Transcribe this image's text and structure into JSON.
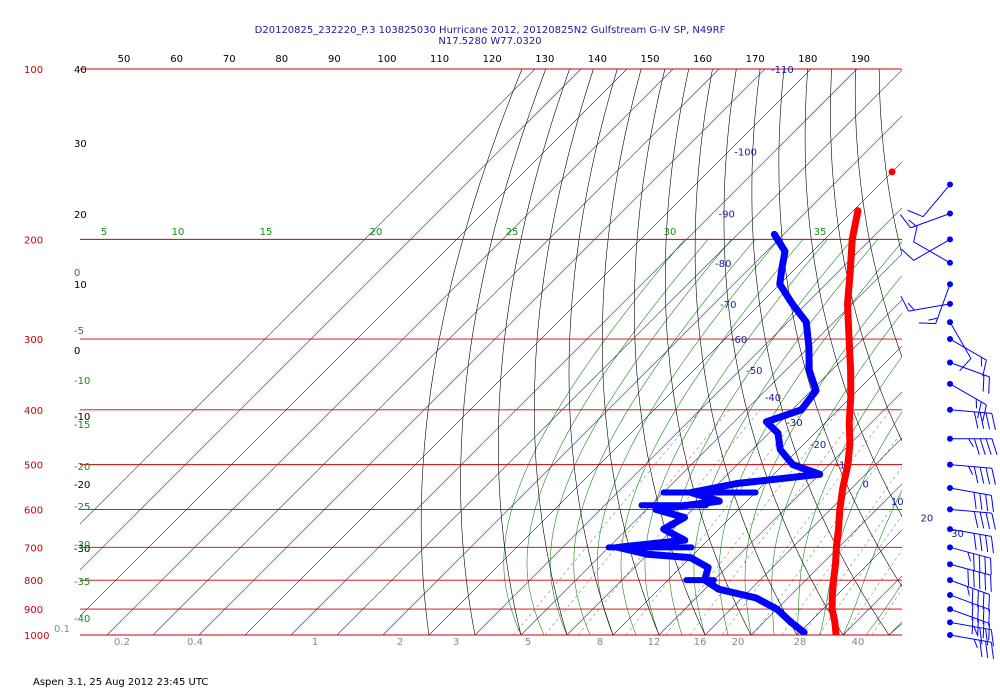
{
  "chart_data": {
    "type": "skew-t",
    "title_lines": [
      "D20120825_232220_P.3 103825030 Hurricane 2012, 20120825N2 Gulfstream G-IV SP, N49RF",
      "N17.5280 W77.0320"
    ],
    "footer": "Aspen 3.1, 25 Aug 2012  23:45 UTC",
    "pressure_levels": [
      100,
      200,
      300,
      400,
      500,
      600,
      700,
      800,
      900,
      1000
    ],
    "theta_labels": [
      50,
      60,
      70,
      80,
      90,
      100,
      110,
      120,
      130,
      140,
      150,
      160,
      170,
      180,
      190
    ],
    "isotherm_labels_left": [
      "-110",
      "-100",
      "-90",
      "-80",
      "-70",
      "-60",
      "-50",
      "-40",
      "-30",
      "-20",
      "-10",
      "0",
      "10",
      "20",
      "30"
    ],
    "left_axis_labels": [
      "40",
      "30",
      "20",
      "10",
      "0",
      "-10",
      "-20",
      "-30"
    ],
    "moist_adiabat_labels_left": [
      "0",
      "-5",
      "-10",
      "-15",
      "-20",
      "-25",
      "-30",
      "-35",
      "-40"
    ],
    "moist_adiabat_labels_top": [
      "5",
      "10",
      "15",
      "20",
      "25",
      "30",
      "35"
    ],
    "mixing_ratio_labels": [
      "0.1",
      "0.2",
      "0.4",
      "1",
      "2",
      "3",
      "5",
      "8",
      "12",
      "16",
      "20",
      "28",
      "40"
    ],
    "temperature_profile": [
      {
        "p": 178,
        "t": -59
      },
      {
        "p": 200,
        "t": -54
      },
      {
        "p": 230,
        "t": -47
      },
      {
        "p": 260,
        "t": -41
      },
      {
        "p": 300,
        "t": -33
      },
      {
        "p": 340,
        "t": -26
      },
      {
        "p": 380,
        "t": -20
      },
      {
        "p": 420,
        "t": -15
      },
      {
        "p": 460,
        "t": -10
      },
      {
        "p": 500,
        "t": -6
      },
      {
        "p": 550,
        "t": -2
      },
      {
        "p": 600,
        "t": 2
      },
      {
        "p": 650,
        "t": 6
      },
      {
        "p": 700,
        "t": 9.5
      },
      {
        "p": 750,
        "t": 13
      },
      {
        "p": 800,
        "t": 16
      },
      {
        "p": 850,
        "t": 19
      },
      {
        "p": 900,
        "t": 22
      },
      {
        "p": 950,
        "t": 25.5
      },
      {
        "p": 1000,
        "t": 28.5
      }
    ],
    "temperature_outlier": {
      "p": 152,
      "t": -60
    },
    "dewpoint_profile": [
      {
        "p": 196,
        "t": -72
      },
      {
        "p": 210,
        "t": -66
      },
      {
        "p": 225,
        "t": -63
      },
      {
        "p": 240,
        "t": -60
      },
      {
        "p": 260,
        "t": -53
      },
      {
        "p": 280,
        "t": -46
      },
      {
        "p": 310,
        "t": -40
      },
      {
        "p": 340,
        "t": -35
      },
      {
        "p": 370,
        "t": -29
      },
      {
        "p": 400,
        "t": -28
      },
      {
        "p": 420,
        "t": -33
      },
      {
        "p": 440,
        "t": -28
      },
      {
        "p": 470,
        "t": -24
      },
      {
        "p": 500,
        "t": -18
      },
      {
        "p": 520,
        "t": -10
      },
      {
        "p": 540,
        "t": -26
      },
      {
        "p": 560,
        "t": -34
      },
      {
        "p": 580,
        "t": -26
      },
      {
        "p": 600,
        "t": -38
      },
      {
        "p": 620,
        "t": -30
      },
      {
        "p": 650,
        "t": -32
      },
      {
        "p": 680,
        "t": -25
      },
      {
        "p": 700,
        "t": -38
      },
      {
        "p": 720,
        "t": -30
      },
      {
        "p": 730,
        "t": -20
      },
      {
        "p": 760,
        "t": -14
      },
      {
        "p": 800,
        "t": -12
      },
      {
        "p": 830,
        "t": -7
      },
      {
        "p": 860,
        "t": 3
      },
      {
        "p": 900,
        "t": 10
      },
      {
        "p": 950,
        "t": 16
      },
      {
        "p": 990,
        "t": 21
      }
    ],
    "dewpoint_excursions": [
      {
        "p": 560,
        "t_min": -40,
        "t_max": -20
      },
      {
        "p": 590,
        "t_min": -42,
        "t_max": -28
      },
      {
        "p": 700,
        "t_min": -40,
        "t_max": -22
      },
      {
        "p": 800,
        "t_min": -16,
        "t_max": -10
      }
    ],
    "wind_barbs": [
      {
        "p": 160,
        "dir": 220,
        "kt": 10
      },
      {
        "p": 180,
        "dir": 250,
        "kt": 15
      },
      {
        "p": 200,
        "dir": 240,
        "kt": 10
      },
      {
        "p": 220,
        "dir": 300,
        "kt": 10
      },
      {
        "p": 240,
        "dir": 200,
        "kt": 15
      },
      {
        "p": 260,
        "dir": 260,
        "kt": 15
      },
      {
        "p": 280,
        "dir": 150,
        "kt": 10
      },
      {
        "p": 300,
        "dir": 120,
        "kt": 15
      },
      {
        "p": 330,
        "dir": 110,
        "kt": 20
      },
      {
        "p": 360,
        "dir": 120,
        "kt": 25
      },
      {
        "p": 400,
        "dir": 95,
        "kt": 40
      },
      {
        "p": 450,
        "dir": 90,
        "kt": 45
      },
      {
        "p": 500,
        "dir": 95,
        "kt": 45
      },
      {
        "p": 550,
        "dir": 100,
        "kt": 40
      },
      {
        "p": 600,
        "dir": 95,
        "kt": 40
      },
      {
        "p": 650,
        "dir": 100,
        "kt": 40
      },
      {
        "p": 700,
        "dir": 105,
        "kt": 45
      },
      {
        "p": 750,
        "dir": 105,
        "kt": 50
      },
      {
        "p": 800,
        "dir": 110,
        "kt": 45
      },
      {
        "p": 850,
        "dir": 110,
        "kt": 40
      },
      {
        "p": 900,
        "dir": 110,
        "kt": 40
      },
      {
        "p": 950,
        "dir": 100,
        "kt": 35
      },
      {
        "p": 1000,
        "dir": 100,
        "kt": 35
      }
    ],
    "colors": {
      "isobar": "#cc0000",
      "isotherm": "#1a1aa0",
      "dry_adiabat": "#000000",
      "moist_adiabat": "#1a8a1a",
      "mixing_ratio": "#888888",
      "temperature": "#ff0000",
      "dewpoint": "#0000ff",
      "wind": "#0000ff"
    },
    "xlabel": "",
    "ylabel": ""
  }
}
